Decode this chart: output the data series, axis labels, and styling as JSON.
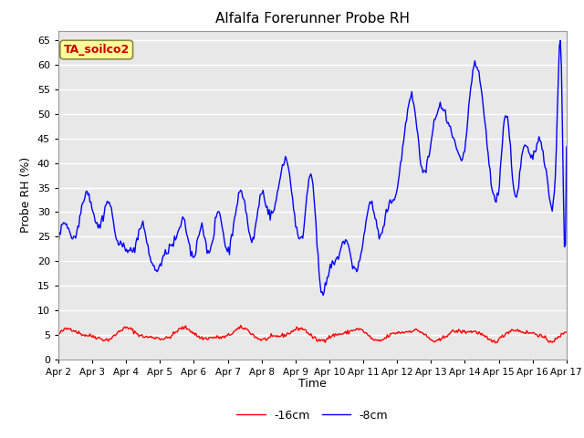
{
  "title": "Alfalfa Forerunner Probe RH",
  "ylabel": "Probe RH (%)",
  "xlabel": "Time",
  "ylim": [
    0,
    67
  ],
  "yticks": [
    0,
    5,
    10,
    15,
    20,
    25,
    30,
    35,
    40,
    45,
    50,
    55,
    60,
    65
  ],
  "plot_bg": "#e8e8e8",
  "grid_color": "#ffffff",
  "line_color_blue": "#0000ff",
  "line_color_red": "#ff0000",
  "legend_label_red": "-16cm",
  "legend_label_blue": "-8cm",
  "annotation_text": "TA_soilco2",
  "annotation_bg": "#ffff99",
  "annotation_border": "#888844",
  "annotation_text_color": "#cc0000",
  "x_tick_labels": [
    "Apr 2",
    "Apr 3",
    "Apr 4",
    "Apr 5",
    "Apr 6",
    "Apr 7",
    "Apr 8",
    "Apr 9",
    "Apr 10",
    "Apr 11",
    "Apr 12",
    "Apr 13",
    "Apr 14",
    "Apr 15",
    "Apr 16",
    "Apr 17"
  ],
  "num_points": 500
}
